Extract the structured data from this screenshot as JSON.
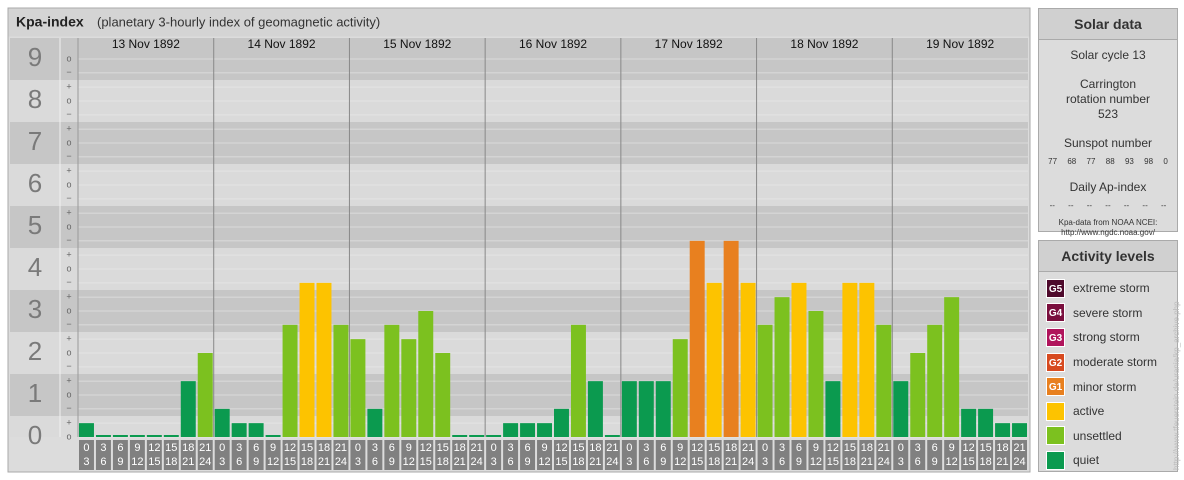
{
  "chart_data": {
    "type": "bar",
    "title": "Kpa-index",
    "subtitle": "(planetary 3-hourly index of geomagnetic activity)",
    "ylim": [
      0,
      9.5
    ],
    "yticks": [
      0,
      1,
      2,
      3,
      4,
      5,
      6,
      7,
      8,
      9
    ],
    "yminorticks": [
      {
        "value": 0,
        "label": "o"
      },
      {
        "value": 0.33,
        "label": "+"
      },
      {
        "value": 0.67,
        "label": "−"
      },
      {
        "value": 1,
        "label": "o"
      },
      {
        "value": 1.33,
        "label": "+"
      },
      {
        "value": 1.67,
        "label": "−"
      },
      {
        "value": 2,
        "label": "o"
      },
      {
        "value": 2.33,
        "label": "+"
      },
      {
        "value": 2.67,
        "label": "−"
      },
      {
        "value": 3,
        "label": "o"
      },
      {
        "value": 3.33,
        "label": "+"
      },
      {
        "value": 3.67,
        "label": "−"
      },
      {
        "value": 4,
        "label": "o"
      },
      {
        "value": 4.33,
        "label": "+"
      },
      {
        "value": 4.67,
        "label": "−"
      },
      {
        "value": 5,
        "label": "o"
      },
      {
        "value": 5.33,
        "label": "+"
      },
      {
        "value": 5.67,
        "label": "−"
      },
      {
        "value": 6,
        "label": "o"
      },
      {
        "value": 6.33,
        "label": "+"
      },
      {
        "value": 6.67,
        "label": "−"
      },
      {
        "value": 7,
        "label": "o"
      },
      {
        "value": 7.33,
        "label": "+"
      },
      {
        "value": 7.67,
        "label": "−"
      },
      {
        "value": 8,
        "label": "o"
      },
      {
        "value": 8.33,
        "label": "+"
      },
      {
        "value": 8.67,
        "label": "−"
      },
      {
        "value": 9,
        "label": "o"
      }
    ],
    "hours": [
      0,
      3,
      6,
      9,
      12,
      15,
      18,
      21,
      24
    ],
    "days": [
      {
        "date": "13 Nov 1892",
        "values": [
          0.33,
          0,
          0,
          0,
          0,
          0,
          1.33,
          2
        ],
        "colors": [
          "#0b9a4f",
          "#0b9a4f",
          "#0b9a4f",
          "#0b9a4f",
          "#0b9a4f",
          "#0b9a4f",
          "#0b9a4f",
          "#7cc11f"
        ]
      },
      {
        "date": "14 Nov 1892",
        "values": [
          0.67,
          0.33,
          0.33,
          0,
          2.67,
          3.67,
          3.67,
          2.67
        ],
        "colors": [
          "#0b9a4f",
          "#0b9a4f",
          "#0b9a4f",
          "#0b9a4f",
          "#7cc11f",
          "#fdc300",
          "#fdc300",
          "#7cc11f"
        ]
      },
      {
        "date": "15 Nov 1892",
        "values": [
          2.33,
          0.67,
          2.67,
          2.33,
          3,
          2,
          0,
          0
        ],
        "colors": [
          "#7cc11f",
          "#0b9a4f",
          "#7cc11f",
          "#7cc11f",
          "#7cc11f",
          "#7cc11f",
          "#0b9a4f",
          "#0b9a4f"
        ]
      },
      {
        "date": "16 Nov 1892",
        "values": [
          0,
          0.33,
          0.33,
          0.33,
          0.67,
          2.67,
          1.33,
          0
        ],
        "colors": [
          "#0b9a4f",
          "#0b9a4f",
          "#0b9a4f",
          "#0b9a4f",
          "#0b9a4f",
          "#7cc11f",
          "#0b9a4f",
          "#0b9a4f"
        ]
      },
      {
        "date": "17 Nov 1892",
        "values": [
          1.33,
          1.33,
          1.33,
          2.33,
          4.67,
          3.67,
          4.67,
          3.67
        ],
        "colors": [
          "#0b9a4f",
          "#0b9a4f",
          "#0b9a4f",
          "#7cc11f",
          "#e8801f",
          "#fdc300",
          "#e8801f",
          "#fdc300"
        ]
      },
      {
        "date": "18 Nov 1892",
        "values": [
          2.67,
          3.33,
          3.67,
          3,
          1.33,
          3.67,
          3.67,
          2.67
        ],
        "colors": [
          "#7cc11f",
          "#7cc11f",
          "#fdc300",
          "#7cc11f",
          "#0b9a4f",
          "#fdc300",
          "#fdc300",
          "#7cc11f"
        ]
      },
      {
        "date": "19 Nov 1892",
        "values": [
          1.33,
          2,
          2.67,
          3.33,
          0.67,
          0.67,
          0.33,
          0.33
        ],
        "colors": [
          "#0b9a4f",
          "#7cc11f",
          "#7cc11f",
          "#7cc11f",
          "#0b9a4f",
          "#0b9a4f",
          "#0b9a4f",
          "#0b9a4f"
        ]
      }
    ]
  },
  "solar_data": {
    "title": "Solar data",
    "solar_cycle": "Solar cycle 13",
    "carrington": "Carrington rotation number 523",
    "sunspot_title": "Sunspot number",
    "sunspots": [
      77,
      68,
      77,
      88,
      93,
      98,
      0
    ],
    "ap_title": "Daily Ap-index",
    "ap": [
      "--",
      "--",
      "--",
      "--",
      "--",
      "--",
      "--"
    ],
    "source": "Kpa-data from NOAA NCEI: http://www.ngdc.noaa.gov/"
  },
  "activity_levels": {
    "title": "Activity levels",
    "items": [
      {
        "badge": "G5",
        "name": "extreme storm",
        "color": "#4e0a2c"
      },
      {
        "badge": "G4",
        "name": "severe storm",
        "color": "#7a0f3e"
      },
      {
        "badge": "G3",
        "name": "strong storm",
        "color": "#b0145c"
      },
      {
        "badge": "G2",
        "name": "moderate storm",
        "color": "#d74a20"
      },
      {
        "badge": "G1",
        "name": "minor storm",
        "color": "#e8801f"
      },
      {
        "name": "active",
        "color": "#fdc300"
      },
      {
        "name": "unsettled",
        "color": "#7cc11f"
      },
      {
        "name": "quiet",
        "color": "#0b9a4f"
      }
    ]
  },
  "side_url": "http://www.tfeuerstein.de/urania/kp_archive.php"
}
